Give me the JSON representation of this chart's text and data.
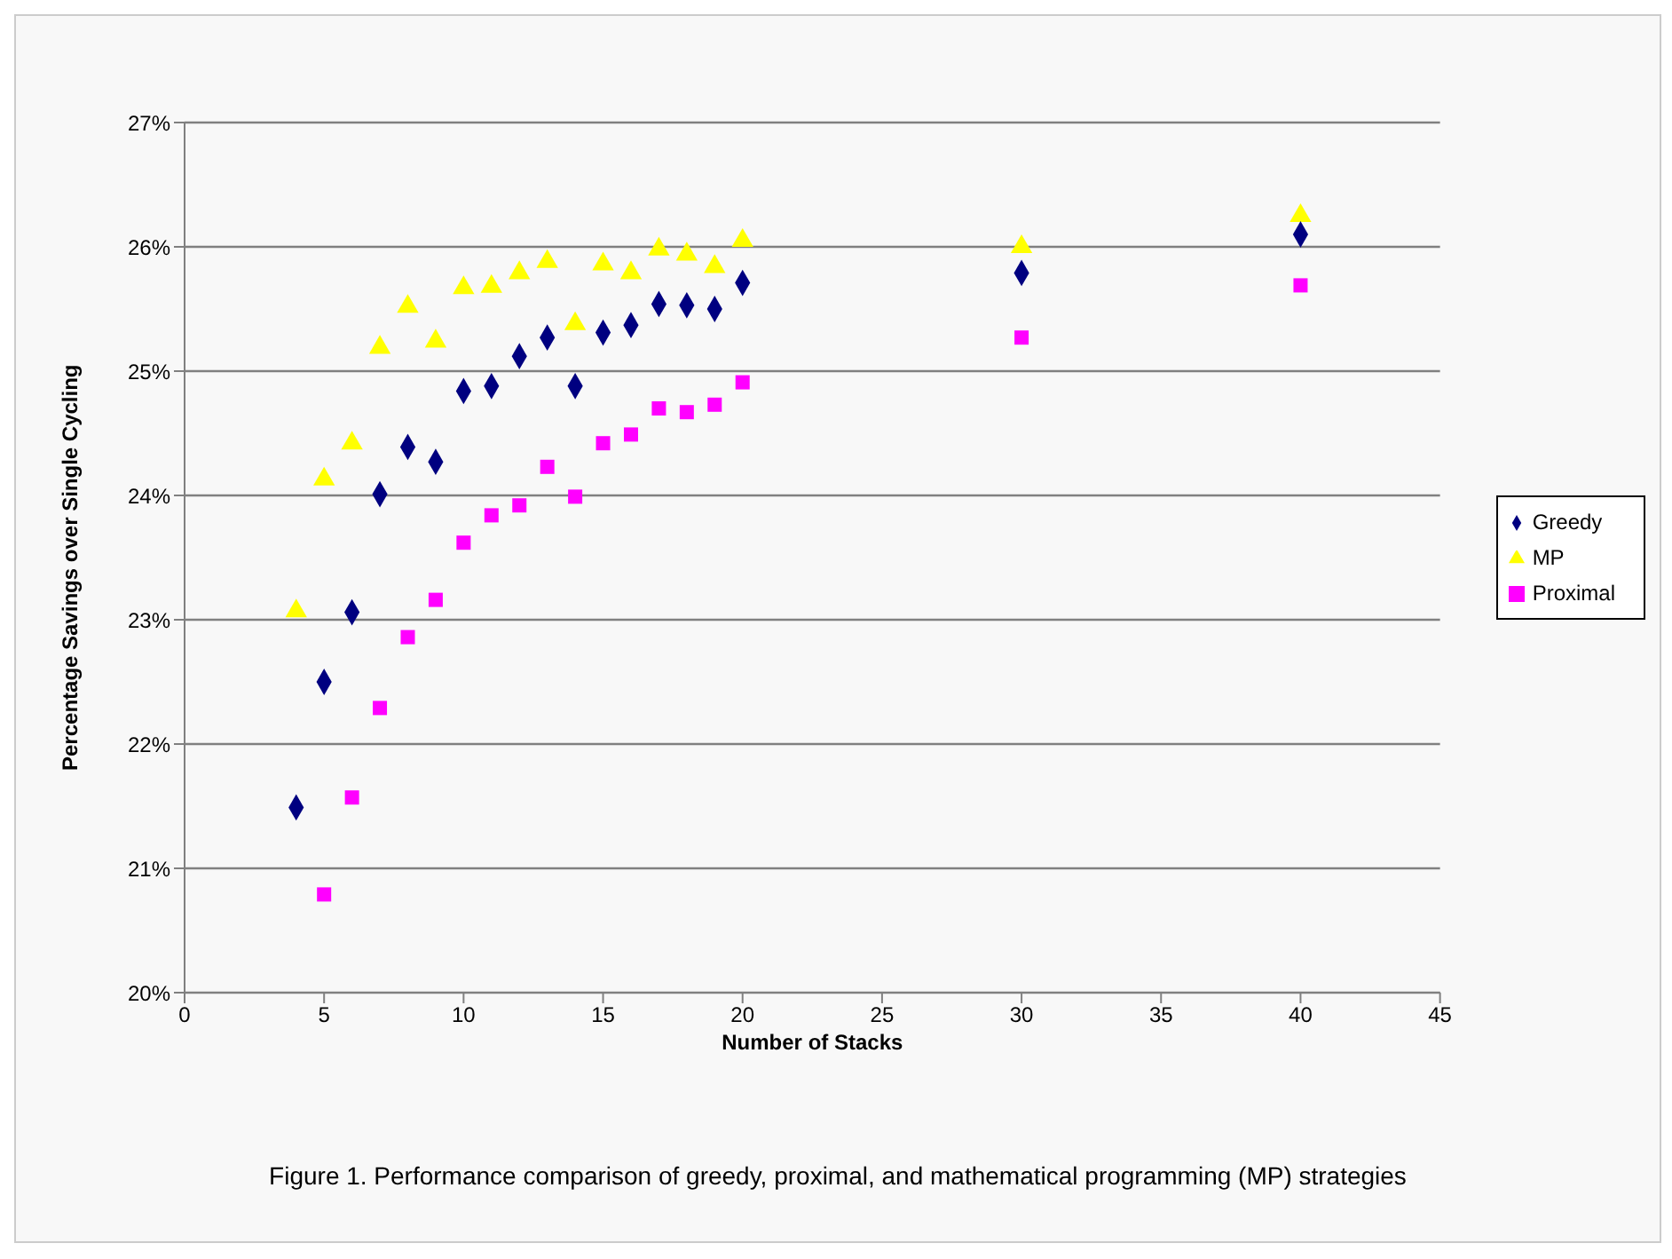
{
  "chart_data": {
    "type": "scatter",
    "xlabel": "Number of Stacks",
    "ylabel": "Percentage Savings over Single Cycling",
    "annotations": [
      "Figure 1.  Performance comparison of greedy, proximal, and mathematical programming (MP) strategies"
    ],
    "x": [
      4,
      5,
      6,
      7,
      8,
      9,
      10,
      11,
      12,
      13,
      14,
      15,
      16,
      17,
      18,
      19,
      20,
      30,
      40
    ],
    "series": [
      {
        "name": "MP",
        "color": "#ffff00",
        "marker": "triangle",
        "values": [
          23.07,
          24.13,
          24.42,
          25.19,
          25.52,
          25.24,
          25.67,
          25.68,
          25.79,
          25.88,
          25.38,
          25.86,
          25.79,
          25.98,
          25.94,
          25.84,
          26.05,
          26.0,
          26.25
        ]
      },
      {
        "name": "Greedy",
        "color": "#000080",
        "marker": "diamond",
        "values": [
          21.49,
          22.5,
          23.06,
          24.01,
          24.39,
          24.27,
          24.84,
          24.88,
          25.12,
          25.27,
          24.88,
          25.31,
          25.37,
          25.54,
          25.53,
          25.5,
          25.71,
          25.79,
          26.1
        ]
      },
      {
        "name": "Proximal",
        "color": "#ff00ff",
        "marker": "square",
        "values": [
          null,
          20.79,
          21.57,
          22.29,
          22.86,
          23.16,
          23.62,
          23.84,
          23.92,
          24.23,
          23.99,
          24.42,
          24.49,
          24.7,
          24.67,
          24.73,
          24.91,
          25.27,
          25.69
        ]
      }
    ],
    "xlim": [
      0,
      45
    ],
    "xticks": [
      0,
      5,
      10,
      15,
      20,
      25,
      30,
      35,
      40,
      45
    ],
    "ylim": [
      20,
      27
    ],
    "yticks": [
      {
        "value": 20,
        "label": "20%"
      },
      {
        "value": 21,
        "label": "21%"
      },
      {
        "value": 22,
        "label": "22%"
      },
      {
        "value": 23,
        "label": "23%"
      },
      {
        "value": 24,
        "label": "24%"
      },
      {
        "value": 25,
        "label": "25%"
      },
      {
        "value": 26,
        "label": "26%"
      },
      {
        "value": 27,
        "label": "27%"
      }
    ],
    "grid": "y",
    "legend": "right"
  }
}
